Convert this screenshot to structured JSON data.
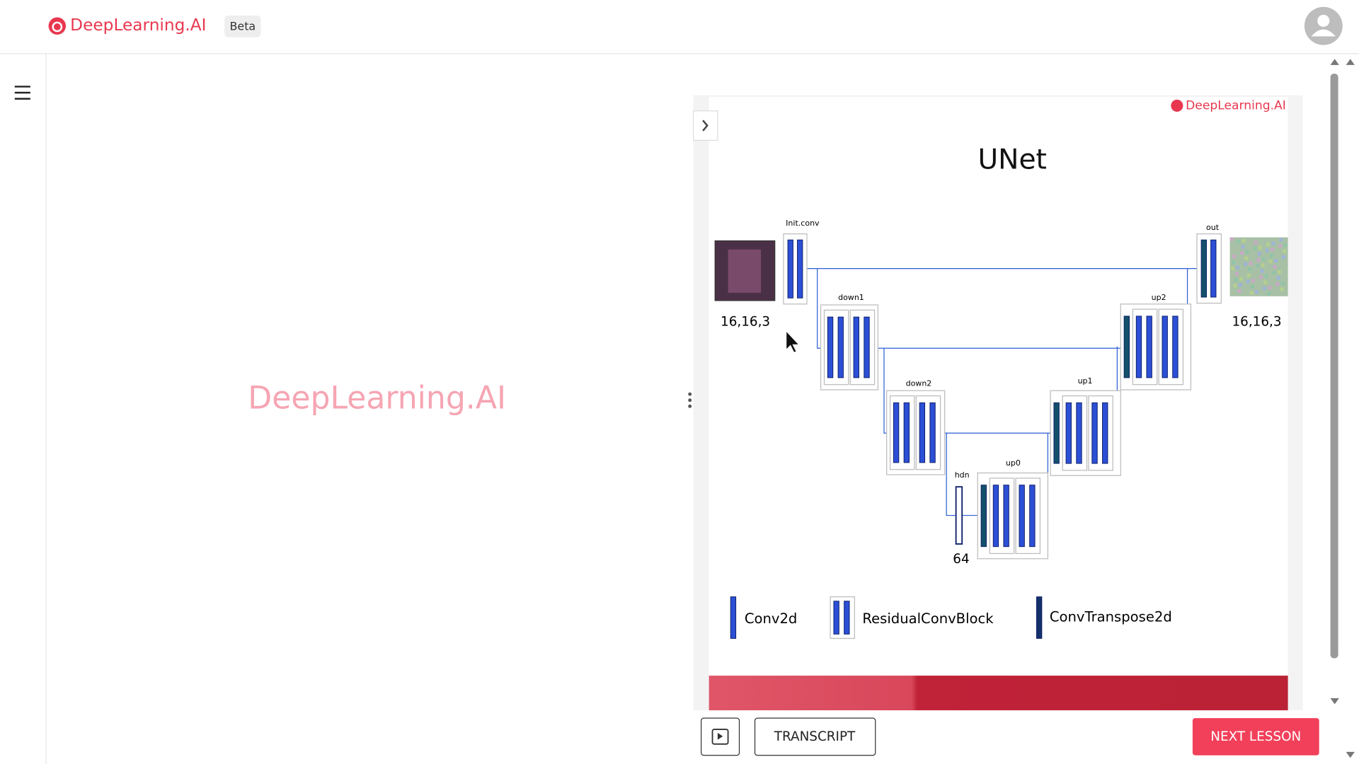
{
  "header": {
    "brand": "DeepLearning.AI",
    "badge": "Beta"
  },
  "video_placeholder": "DeepLearning.AI",
  "slide": {
    "logo": "DeepLearning.AI",
    "title": "UNet",
    "blocks": {
      "init_conv": "Init.conv",
      "down1": "down1",
      "down2": "down2",
      "hdn": "hdn",
      "up0": "up0",
      "up1": "up1",
      "up2": "up2",
      "out": "out"
    },
    "input_shape": "16,16,3",
    "output_shape": "16,16,3",
    "bottleneck": "64",
    "legend": [
      "Conv2d",
      "ResidualConvBlock",
      "ConvTranspose2d"
    ]
  },
  "controls": {
    "transcript": "TRANSCRIPT",
    "next_lesson": "NEXT LESSON"
  }
}
